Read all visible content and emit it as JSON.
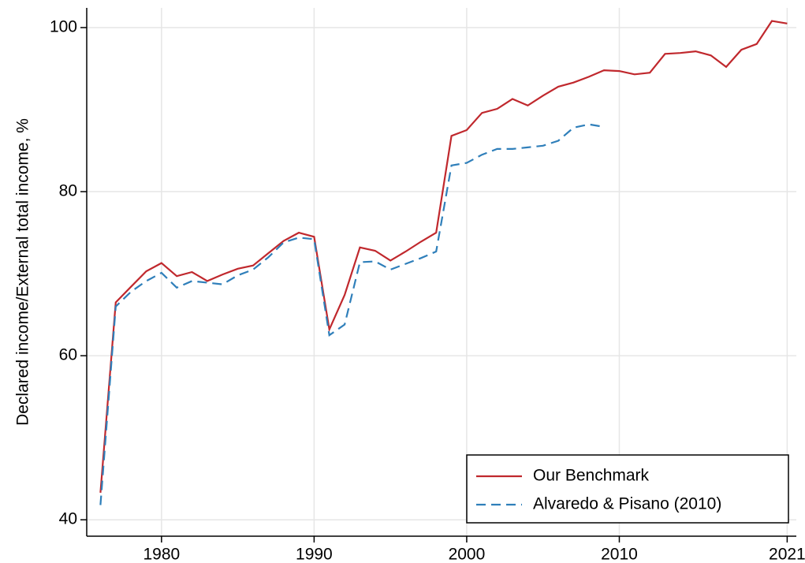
{
  "chart_data": {
    "type": "line",
    "y_label": "Declared income/External total income, %",
    "x": [
      1976,
      1977,
      1978,
      1979,
      1980,
      1981,
      1982,
      1983,
      1984,
      1985,
      1986,
      1987,
      1988,
      1989,
      1990,
      1991,
      1992,
      1993,
      1994,
      1995,
      1996,
      1997,
      1998,
      1999,
      2000,
      2001,
      2002,
      2003,
      2004,
      2005,
      2006,
      2007,
      2008,
      2009,
      2010,
      2011,
      2012,
      2013,
      2014,
      2015,
      2016,
      2017,
      2018,
      2019,
      2020,
      2021
    ],
    "series": [
      {
        "name": "Our Benchmark",
        "color": "#c0282d",
        "dash": "solid",
        "values": [
          43.3,
          66.5,
          68.4,
          70.3,
          71.3,
          69.7,
          70.2,
          69.1,
          69.9,
          70.6,
          71.0,
          72.5,
          74.0,
          75.0,
          74.5,
          63.2,
          67.4,
          73.2,
          72.8,
          71.6,
          72.7,
          73.9,
          75.0,
          86.8,
          87.5,
          89.6,
          90.1,
          91.3,
          90.5,
          91.7,
          92.8,
          93.3,
          94.0,
          94.8,
          94.7,
          94.3,
          94.5,
          96.8,
          96.9,
          97.1,
          96.6,
          95.2,
          97.3,
          98.0,
          100.8,
          100.5
        ]
      },
      {
        "name": "Alvaredo & Pisano (2010)",
        "color": "#2f7fba",
        "dash": "dashed",
        "values": [
          41.8,
          66.0,
          67.8,
          69.1,
          70.1,
          68.3,
          69.1,
          68.9,
          68.7,
          69.8,
          70.5,
          72.0,
          73.8,
          74.4,
          74.2,
          62.5,
          63.8,
          71.4,
          71.5,
          70.5,
          71.2,
          71.9,
          72.7,
          83.2,
          83.5,
          84.5,
          85.2,
          85.2,
          85.4,
          85.6,
          86.2,
          87.8,
          88.2,
          87.9,
          null,
          null,
          null,
          null,
          null,
          null,
          null,
          null,
          null,
          null,
          null,
          null
        ]
      }
    ],
    "xlim": [
      1975.1,
      2021.6
    ],
    "xticks": [
      1980,
      1990,
      2000,
      2010,
      2021
    ],
    "ylim": [
      38,
      102.4
    ],
    "yticks": [
      40,
      60,
      80,
      100
    ],
    "grid": true,
    "legend": "bottom-right"
  }
}
